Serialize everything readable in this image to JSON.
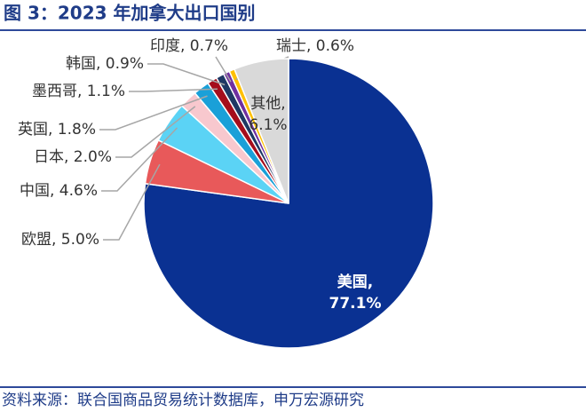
{
  "chart_data": {
    "type": "pie",
    "title": "图 3：2023 年加拿大出口国别",
    "source": "资料来源：联合国商品贸易统计数据库，申万宏源研究",
    "categories": [
      "美国",
      "欧盟",
      "中国",
      "日本",
      "英国",
      "墨西哥",
      "韩国",
      "印度",
      "瑞士",
      "其他"
    ],
    "values": [
      77.1,
      5.0,
      4.6,
      2.0,
      1.8,
      1.1,
      0.9,
      0.7,
      0.6,
      6.1
    ],
    "value_labels": [
      "美国, 77.1%",
      "欧盟, 5.0%",
      "中国, 4.6%",
      "日本, 2.0%",
      "英国, 1.8%",
      "墨西哥, 1.1%",
      "韩国, 0.9%",
      "印度, 0.7%",
      "瑞士, 0.6%",
      "其他, 6.1%"
    ],
    "colors": [
      "#0a3192",
      "#e8595a",
      "#5bd3f5",
      "#f8c8ce",
      "#1aa0d8",
      "#a50d1c",
      "#1f3864",
      "#7030a0",
      "#ffc000",
      "#d9d9d9"
    ]
  }
}
